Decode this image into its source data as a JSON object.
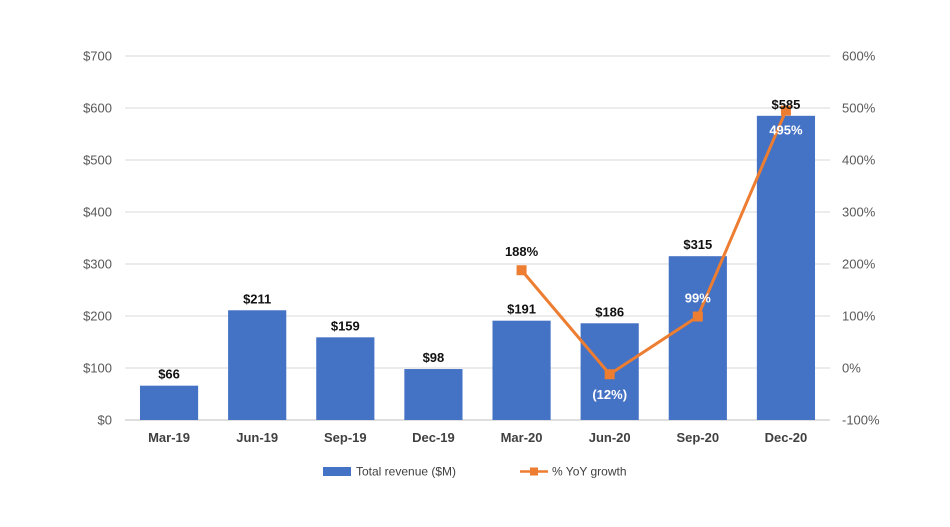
{
  "chart_data": {
    "type": "bar",
    "categories": [
      "Mar-19",
      "Jun-19",
      "Sep-19",
      "Dec-19",
      "Mar-20",
      "Jun-20",
      "Sep-20",
      "Dec-20"
    ],
    "series": [
      {
        "name": "Total revenue ($M)",
        "type": "bar",
        "axis": "left",
        "values": [
          66,
          211,
          159,
          98,
          191,
          186,
          315,
          585
        ],
        "labels": [
          "$66",
          "$211",
          "$159",
          "$98",
          "$191",
          "$186",
          "$315",
          "$585"
        ],
        "color": "#4472C4"
      },
      {
        "name": "% YoY growth",
        "type": "line",
        "axis": "right",
        "values": [
          null,
          null,
          null,
          null,
          188,
          -12,
          99,
          495
        ],
        "labels": [
          "",
          "",
          "",
          "",
          "188%",
          "(12%)",
          "99%",
          "495%"
        ],
        "color": "#ED7D31"
      }
    ],
    "y_left": {
      "ylim": [
        0,
        700
      ],
      "ticks": [
        0,
        100,
        200,
        300,
        400,
        500,
        600,
        700
      ],
      "tick_labels": [
        "$0",
        "$100",
        "$200",
        "$300",
        "$400",
        "$500",
        "$600",
        "$700"
      ]
    },
    "y_right": {
      "ylim": [
        -100,
        600
      ],
      "ticks": [
        -100,
        0,
        100,
        200,
        300,
        400,
        500,
        600
      ],
      "tick_labels": [
        "-100%",
        "0%",
        "100%",
        "200%",
        "300%",
        "400%",
        "500%",
        "600%"
      ]
    },
    "grid": true,
    "legend_position": "bottom-center",
    "title": "",
    "xlabel": "",
    "ylabel": ""
  }
}
